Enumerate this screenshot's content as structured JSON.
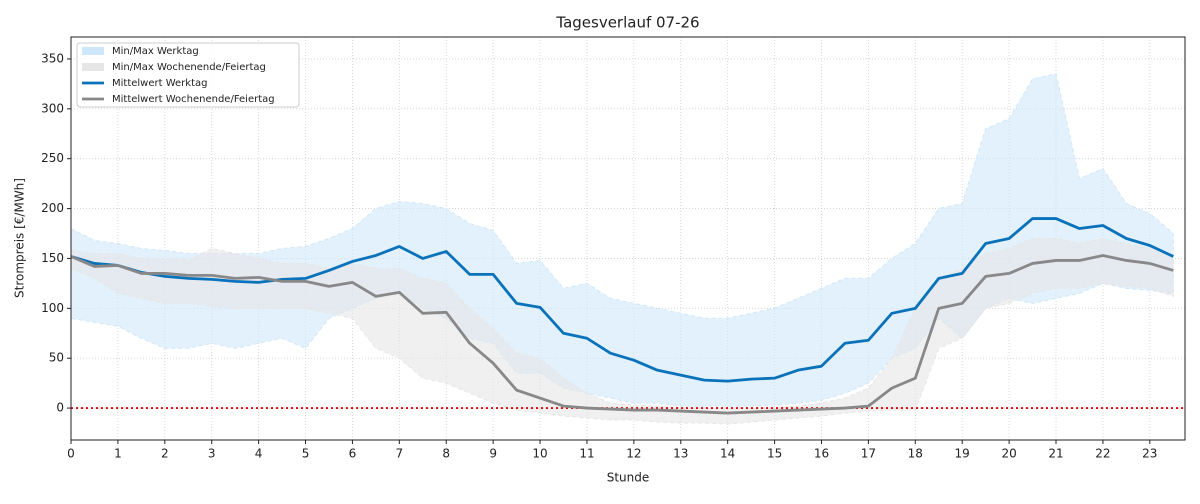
{
  "chart_data": {
    "type": "line",
    "title": "Tagesverlauf 07-26",
    "xlabel": "Stunde",
    "ylabel": "Strompreis [€/MWh]",
    "xlim": [
      0,
      23.75
    ],
    "ylim": [
      -32,
      372
    ],
    "xticks": [
      0,
      1,
      2,
      3,
      4,
      5,
      6,
      7,
      8,
      9,
      10,
      11,
      12,
      13,
      14,
      15,
      16,
      17,
      18,
      19,
      20,
      21,
      22,
      23
    ],
    "yticks": [
      0,
      50,
      100,
      150,
      200,
      250,
      300,
      350
    ],
    "grid": true,
    "legend": "upper left",
    "hline": {
      "value": 0,
      "color": "#e00000"
    },
    "x": [
      0,
      0.5,
      1,
      1.5,
      2,
      2.5,
      3,
      3.5,
      4,
      4.5,
      5,
      5.5,
      6,
      6.5,
      7,
      7.5,
      8,
      8.5,
      9,
      9.5,
      10,
      10.5,
      11,
      11.5,
      12,
      12.5,
      13,
      13.5,
      14,
      14.5,
      15,
      15.5,
      16,
      16.5,
      17,
      17.5,
      18,
      18.5,
      19,
      19.5,
      20,
      20.5,
      21,
      21.5,
      22,
      22.5,
      23,
      23.5
    ],
    "bands": [
      {
        "name": "Min/Max Werktag",
        "color": "#cfe7fa",
        "lower": [
          90,
          86,
          82,
          70,
          60,
          60,
          65,
          60,
          65,
          70,
          60,
          90,
          100,
          110,
          115,
          100,
          90,
          70,
          65,
          35,
          35,
          20,
          15,
          10,
          5,
          5,
          2,
          2,
          2,
          2,
          3,
          5,
          8,
          15,
          25,
          50,
          60,
          90,
          70,
          100,
          110,
          105,
          110,
          115,
          125,
          120,
          118,
          115
        ],
        "upper": [
          180,
          168,
          165,
          160,
          158,
          155,
          155,
          155,
          155,
          160,
          162,
          170,
          180,
          200,
          207,
          205,
          200,
          185,
          178,
          145,
          148,
          120,
          125,
          110,
          105,
          100,
          95,
          90,
          90,
          95,
          100,
          110,
          120,
          130,
          130,
          150,
          165,
          200,
          205,
          280,
          290,
          330,
          335,
          230,
          240,
          205,
          195,
          175
        ]
      },
      {
        "name": "Min/Max Wochenende/Feiertag",
        "color": "#e6e6e6",
        "lower": [
          140,
          130,
          115,
          110,
          105,
          105,
          102,
          100,
          100,
          100,
          100,
          95,
          90,
          60,
          50,
          30,
          25,
          15,
          5,
          -2,
          -5,
          -8,
          -10,
          -12,
          -12,
          -14,
          -15,
          -15,
          -16,
          -14,
          -12,
          -10,
          -8,
          -5,
          -3,
          -2,
          -2,
          60,
          70,
          100,
          105,
          115,
          120,
          120,
          125,
          122,
          120,
          112
        ],
        "upper": [
          158,
          155,
          155,
          150,
          150,
          148,
          160,
          155,
          150,
          145,
          145,
          140,
          145,
          140,
          140,
          130,
          125,
          100,
          80,
          55,
          50,
          30,
          15,
          5,
          3,
          2,
          0,
          0,
          0,
          0,
          0,
          2,
          5,
          10,
          20,
          50,
          100,
          130,
          140,
          155,
          160,
          170,
          170,
          165,
          170,
          165,
          160,
          150
        ]
      }
    ],
    "series": [
      {
        "name": "Mittelwert Werktag",
        "color": "#0a72ba",
        "values": [
          152,
          145,
          143,
          136,
          132,
          130,
          129,
          127,
          126,
          129,
          130,
          138,
          147,
          153,
          162,
          150,
          157,
          134,
          134,
          105,
          101,
          75,
          70,
          55,
          48,
          38,
          33,
          28,
          27,
          29,
          30,
          38,
          42,
          65,
          68,
          95,
          100,
          130,
          135,
          165,
          170,
          190,
          190,
          180,
          183,
          170,
          163,
          152
        ]
      },
      {
        "name": "Mittelwert Wochenende/Feiertag",
        "color": "#888888",
        "values": [
          152,
          142,
          143,
          135,
          135,
          133,
          133,
          130,
          131,
          127,
          127,
          122,
          126,
          112,
          116,
          95,
          96,
          65,
          45,
          18,
          10,
          2,
          0,
          -1,
          -2,
          -2,
          -3,
          -4,
          -5,
          -4,
          -3,
          -2,
          -1,
          0,
          2,
          20,
          30,
          100,
          105,
          132,
          135,
          145,
          148,
          148,
          153,
          148,
          145,
          138
        ]
      }
    ]
  }
}
